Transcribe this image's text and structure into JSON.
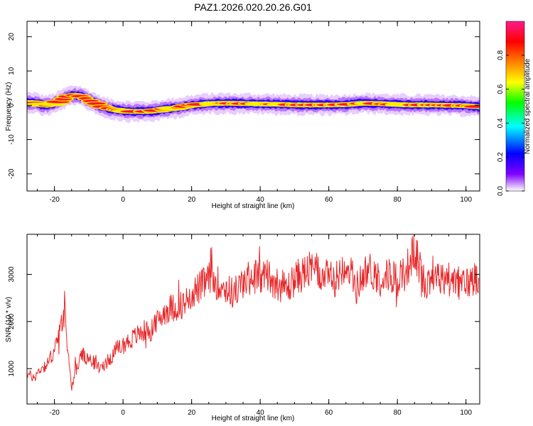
{
  "title": "PAZ1.2026.020.20.26.G01",
  "chart_data": [
    {
      "type": "heatmap",
      "xlabel": "Height of straight line (km)",
      "ylabel": "Frequency (Hz)",
      "xlim": [
        -28,
        104
      ],
      "ylim": [
        -25,
        24.5
      ],
      "xticks": [
        -20,
        0,
        20,
        40,
        60,
        80,
        100
      ],
      "yticks": [
        -20,
        -10,
        0,
        10,
        20
      ],
      "colorbar": {
        "label": "Normalized spectral amplitude",
        "range": [
          0,
          1
        ],
        "ticks": [
          0.0,
          0.2,
          0.4,
          0.6,
          0.8
        ],
        "stops": [
          "#ffffff",
          "#8000ff",
          "#0000ff",
          "#00ffff",
          "#00ff00",
          "#ffff00",
          "#ff8000",
          "#ff0000",
          "#ff1a8c"
        ]
      },
      "ridge": {
        "x": [
          -26,
          -24,
          -22,
          -20,
          -18,
          -16,
          -14,
          -12,
          -10,
          -8,
          -6,
          -4,
          -2,
          0,
          2,
          4,
          6,
          8,
          10,
          15,
          20,
          25,
          30,
          35,
          40,
          45,
          50,
          55,
          60,
          65,
          70,
          75,
          80,
          85,
          90,
          95,
          100,
          104
        ],
        "freq": [
          0.8,
          0.2,
          0.0,
          0.5,
          1.5,
          2.5,
          3.0,
          2.5,
          1.5,
          0.6,
          -0.5,
          -1.0,
          -1.3,
          -1.6,
          -1.8,
          -1.8,
          -1.8,
          -1.8,
          -1.5,
          -0.8,
          0.0,
          0.5,
          0.6,
          0.5,
          0.4,
          0.3,
          0.1,
          0.1,
          0.1,
          0.2,
          0.6,
          0.5,
          0.2,
          0.1,
          0.1,
          0.0,
          -0.1,
          -0.5
        ]
      }
    },
    {
      "type": "line",
      "xlabel": "Height of straight line (km)",
      "ylabel": "SNR (10 * v/v)",
      "xlim": [
        -28,
        104
      ],
      "ylim": [
        250,
        3850
      ],
      "xticks": [
        -20,
        0,
        20,
        40,
        60,
        80,
        100
      ],
      "yticks": [
        1000,
        2000,
        3000
      ],
      "series": [
        {
          "name": "SNR",
          "color": "#e8282a",
          "x": [
            -28,
            -26,
            -24,
            -22,
            -20,
            -19,
            -18,
            -17,
            -16,
            -15,
            -14,
            -12,
            -10,
            -8,
            -6,
            -4,
            -2,
            0,
            2,
            4,
            6,
            8,
            10,
            12,
            14,
            16,
            18,
            20,
            22,
            25,
            28,
            30,
            32,
            35,
            38,
            40,
            42,
            45,
            48,
            50,
            52,
            55,
            58,
            60,
            62,
            65,
            68,
            70,
            72,
            75,
            78,
            80,
            82,
            85,
            88,
            90,
            92,
            95,
            98,
            100,
            102,
            104
          ],
          "y": [
            900,
            800,
            1000,
            1100,
            1400,
            1600,
            1900,
            2200,
            1300,
            600,
            900,
            1300,
            1200,
            1100,
            1000,
            1200,
            1400,
            1500,
            1600,
            1700,
            1800,
            1800,
            2000,
            2200,
            2300,
            2300,
            2400,
            2600,
            2700,
            2900,
            2800,
            2700,
            2600,
            2800,
            3000,
            2900,
            3000,
            2800,
            2700,
            2900,
            3000,
            3100,
            3000,
            2900,
            2900,
            3300,
            2700,
            3000,
            3100,
            2900,
            3000,
            2900,
            3000,
            3500,
            2800,
            3000,
            2900,
            2900,
            2800,
            2800,
            2900,
            3000
          ]
        }
      ]
    }
  ]
}
